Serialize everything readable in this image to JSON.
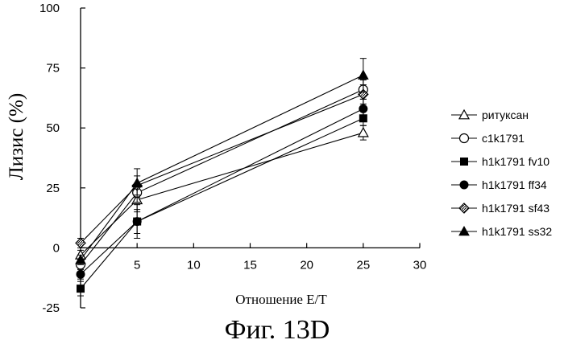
{
  "figure_caption": "Фиг. 13D",
  "chart_data": {
    "type": "line",
    "xlabel": "Отношение E/T",
    "ylabel": "Лизис (%)",
    "xlim": [
      0,
      30
    ],
    "ylim": [
      -25,
      100
    ],
    "x_ticks": [
      5,
      10,
      15,
      20,
      25,
      30
    ],
    "y_ticks": [
      -25,
      0,
      25,
      50,
      75,
      100
    ],
    "grid": false,
    "legend_position": "right",
    "x": [
      0,
      5,
      25
    ],
    "series": [
      {
        "name": "ритуксан",
        "marker": "triangle-open",
        "values": [
          -3,
          20,
          48
        ],
        "errors": [
          2,
          5,
          3
        ]
      },
      {
        "name": "c1k1791",
        "marker": "circle-open",
        "values": [
          -7,
          23,
          66
        ],
        "errors": [
          2,
          4,
          4
        ]
      },
      {
        "name": "h1k1791 fv10",
        "marker": "square-filled",
        "values": [
          -17,
          11,
          54
        ],
        "errors": [
          3,
          5,
          3
        ]
      },
      {
        "name": "h1k1791 ff34",
        "marker": "circle-filled",
        "values": [
          -11,
          11,
          58
        ],
        "errors": [
          2,
          7,
          4
        ]
      },
      {
        "name": "h1k1791 sf43",
        "marker": "diamond-hatched",
        "values": [
          2,
          26,
          64
        ],
        "errors": [
          2,
          4,
          4
        ]
      },
      {
        "name": "h1k1791 ss32",
        "marker": "triangle-filled",
        "values": [
          -5,
          27,
          72
        ],
        "errors": [
          2,
          6,
          7
        ]
      }
    ]
  }
}
